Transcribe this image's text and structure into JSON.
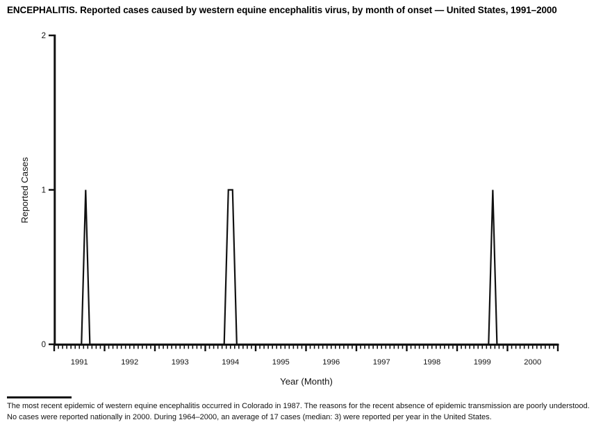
{
  "title": "ENCEPHALITIS. Reported cases caused by western equine encephalitis virus, by month of onset — United States, 1991–2000",
  "y_axis": {
    "label": "Reported Cases",
    "ticks": [
      "0",
      "1",
      "2"
    ]
  },
  "x_axis": {
    "label": "Year (Month)",
    "years": [
      "1991",
      "1992",
      "1993",
      "1994",
      "1995",
      "1996",
      "1997",
      "1998",
      "1999",
      "2000"
    ]
  },
  "footnote": "The most recent epidemic of western equine encephalitis occurred in Colorado in 1987. The reasons for the recent absence of epidemic transmission are poorly understood. No cases were reported nationally in 2000. During 1964–2000, an average of 17 cases (median: 3) were reported per year in the United States.",
  "colors": {
    "line": "#111111",
    "axis": "#111111",
    "text": "#000000",
    "background": "#ffffff"
  },
  "chart_data": {
    "type": "line",
    "title": "ENCEPHALITIS. Reported cases caused by western equine encephalitis virus, by month of onset — United States, 1991–2000",
    "xlabel": "Year (Month)",
    "ylabel": "Reported Cases",
    "ylim": [
      0,
      2
    ],
    "yticks": [
      0,
      1,
      2
    ],
    "x_range": {
      "start": "1991-01",
      "end": "2000-12",
      "interval": "month"
    },
    "x_tick_years": [
      1991,
      1992,
      1993,
      1994,
      1995,
      1996,
      1997,
      1998,
      1999,
      2000
    ],
    "baseline_value": 0,
    "nonzero_points": [
      {
        "x": "1991-08",
        "y": 1
      },
      {
        "x": "1994-06",
        "y": 1
      },
      {
        "x": "1994-07",
        "y": 1
      },
      {
        "x": "1999-09",
        "y": 1
      }
    ],
    "grid": false,
    "legend": "none"
  }
}
